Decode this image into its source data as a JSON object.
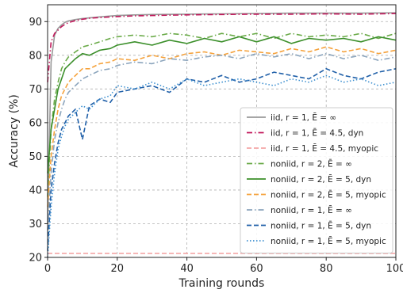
{
  "chart_data": {
    "type": "line",
    "title": "",
    "xlabel": "Training rounds",
    "ylabel": "Accuracy (%)",
    "xlim": [
      0,
      100
    ],
    "ylim": [
      20,
      95
    ],
    "xticks": [
      0,
      20,
      40,
      60,
      80,
      100
    ],
    "yticks": [
      20,
      30,
      40,
      50,
      60,
      70,
      80,
      90
    ],
    "grid": true,
    "legend_position": "lower-right",
    "series": [
      {
        "name": "iid, r = 1, Ē = ∞",
        "color": "#999999",
        "dash": "solid",
        "x": [
          0,
          1,
          2,
          3,
          4,
          5,
          6,
          8,
          10,
          12,
          15,
          20,
          25,
          30,
          40,
          50,
          60,
          70,
          80,
          90,
          100
        ],
        "y": [
          30,
          78,
          86,
          88,
          89,
          89.8,
          90.2,
          90.6,
          90.9,
          91.1,
          91.4,
          91.8,
          92.0,
          92.1,
          92.2,
          92.3,
          92.4,
          92.5,
          92.5,
          92.5,
          92.6
        ]
      },
      {
        "name": "iid, r = 1, Ē = 4.5, dyn",
        "color": "#c2185b",
        "dash": "dashdot",
        "x": [
          0,
          1,
          2,
          3,
          4,
          5,
          6,
          8,
          10,
          12,
          15,
          20,
          25,
          30,
          40,
          50,
          60,
          70,
          80,
          90,
          100
        ],
        "y": [
          72,
          84,
          86.5,
          87.5,
          88.5,
          89.2,
          89.7,
          90.3,
          90.7,
          91.0,
          91.2,
          91.5,
          91.7,
          91.8,
          92.0,
          92.1,
          92.2,
          92.2,
          92.3,
          92.2,
          92.4
        ]
      },
      {
        "name": "iid, r = 1, Ē = 4.5, myopic",
        "color": "#f4a6a6",
        "dash": "dashed",
        "x": [
          0,
          100
        ],
        "y": [
          21.2,
          21.2
        ]
      },
      {
        "name": "noniid, r = 2, Ē = ∞",
        "color": "#6aaa48",
        "dash": "dashdot",
        "x": [
          0,
          1,
          2,
          3,
          4,
          5,
          6,
          8,
          10,
          12,
          15,
          18,
          20,
          25,
          30,
          35,
          40,
          45,
          50,
          55,
          60,
          65,
          70,
          75,
          80,
          85,
          90,
          95,
          100
        ],
        "y": [
          38,
          58,
          67,
          72,
          76,
          78,
          79.5,
          81,
          82.5,
          83,
          84,
          85,
          85.5,
          86,
          85.5,
          86.5,
          86,
          85,
          86.5,
          85.5,
          86.5,
          85,
          86.5,
          85.5,
          86,
          85.5,
          86.5,
          85,
          86.5
        ]
      },
      {
        "name": "noniid, r = 2, Ē = 5, dyn",
        "color": "#3b8f2a",
        "dash": "solid",
        "x": [
          0,
          1,
          2,
          3,
          4,
          5,
          6,
          8,
          10,
          12,
          15,
          18,
          20,
          25,
          30,
          35,
          40,
          45,
          50,
          55,
          60,
          65,
          70,
          75,
          80,
          85,
          90,
          95,
          100
        ],
        "y": [
          45,
          58,
          64,
          70,
          73,
          76,
          77,
          79,
          80.5,
          80,
          81.5,
          82,
          83,
          84,
          83,
          84.5,
          83.5,
          85,
          84,
          85.5,
          84,
          85.5,
          83.5,
          85,
          84.5,
          85,
          84,
          85.5,
          84.5
        ]
      },
      {
        "name": "noniid, r = 2, Ē = 5, myopic",
        "color": "#f5a23c",
        "dash": "dashed",
        "x": [
          0,
          1,
          2,
          3,
          4,
          5,
          6,
          8,
          10,
          12,
          15,
          18,
          20,
          25,
          30,
          35,
          40,
          45,
          50,
          55,
          60,
          65,
          70,
          75,
          80,
          85,
          90,
          95,
          100
        ],
        "y": [
          35,
          50,
          58,
          64,
          68,
          70,
          72,
          74,
          76,
          76,
          77.5,
          78,
          79,
          78.5,
          80,
          79,
          80.5,
          81,
          80,
          81.5,
          81,
          80.5,
          82,
          81,
          82.5,
          81,
          82,
          80.5,
          81.5
        ]
      },
      {
        "name": "noniid, r = 1, Ē = ∞",
        "color": "#8ca5bd",
        "dash": "dashdot",
        "x": [
          0,
          1,
          2,
          3,
          4,
          5,
          6,
          8,
          10,
          12,
          15,
          18,
          20,
          25,
          30,
          35,
          40,
          45,
          50,
          55,
          60,
          65,
          70,
          75,
          80,
          85,
          90,
          95,
          100
        ],
        "y": [
          28,
          45,
          55,
          60,
          64,
          67,
          69,
          71,
          73,
          74,
          75.5,
          76,
          77,
          78,
          77.5,
          79,
          78.5,
          79.5,
          80,
          79,
          80.5,
          79.5,
          80.5,
          79,
          80.5,
          79,
          80,
          78.5,
          79.5
        ]
      },
      {
        "name": "noniid, r = 1, Ē = 5, dyn",
        "color": "#1f5fa8",
        "dash": "dashed",
        "x": [
          0,
          1,
          2,
          3,
          4,
          5,
          6,
          8,
          10,
          12,
          15,
          18,
          20,
          25,
          30,
          35,
          40,
          45,
          50,
          55,
          60,
          65,
          70,
          75,
          80,
          85,
          90,
          95,
          100
        ],
        "y": [
          22,
          40,
          48,
          54,
          58,
          60,
          62,
          64,
          55,
          65,
          67,
          66,
          69,
          70,
          71,
          69,
          73,
          72,
          74,
          72,
          73,
          75,
          74,
          73,
          76,
          74,
          73,
          75,
          76
        ]
      },
      {
        "name": "noniid, r = 1, Ē = 5, myopic",
        "color": "#3c8fd0",
        "dash": "dotted",
        "x": [
          0,
          1,
          2,
          3,
          4,
          5,
          6,
          8,
          10,
          12,
          15,
          18,
          20,
          25,
          30,
          35,
          40,
          45,
          50,
          55,
          60,
          65,
          70,
          75,
          80,
          85,
          90,
          95,
          100
        ],
        "y": [
          20,
          35,
          45,
          52,
          56,
          59,
          61,
          63,
          65,
          64,
          67,
          68,
          71,
          70,
          72,
          70,
          73,
          71,
          72,
          73,
          72,
          71,
          73,
          72,
          74,
          72,
          73,
          71,
          72
        ]
      }
    ]
  }
}
